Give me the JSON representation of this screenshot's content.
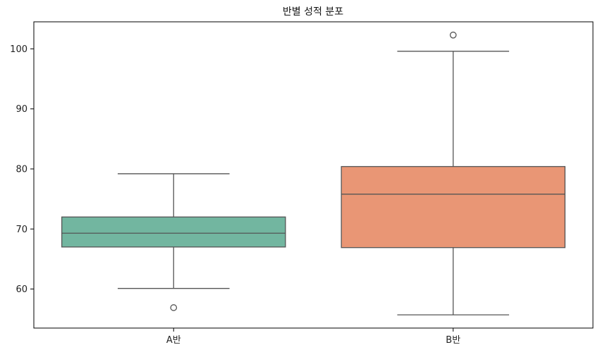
{
  "chart_data": {
    "type": "box",
    "title": "반별 성적 분포",
    "xlabel": "",
    "ylabel": "",
    "categories": [
      "A반",
      "B반"
    ],
    "ylim": [
      53.5,
      104.5
    ],
    "yticks": [
      60,
      70,
      80,
      90,
      100
    ],
    "grid": false,
    "boxes": [
      {
        "label": "A반",
        "whisker_low": 60.1,
        "q1": 67.0,
        "median": 69.3,
        "q3": 72.0,
        "whisker_high": 79.2,
        "outliers": [
          56.9
        ],
        "color": "#72b6a0"
      },
      {
        "label": "B반",
        "whisker_low": 55.7,
        "q1": 66.9,
        "median": 75.8,
        "q3": 80.4,
        "whisker_high": 99.6,
        "outliers": [
          102.3
        ],
        "color": "#e99675"
      }
    ],
    "line_color": "#555555"
  }
}
